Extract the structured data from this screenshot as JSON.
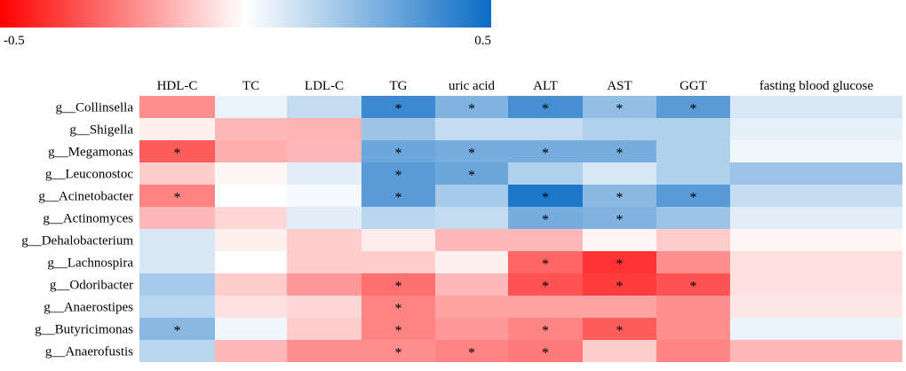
{
  "chart_data": {
    "type": "heatmap",
    "title": "",
    "colorbar": {
      "min": -0.5,
      "max": 0.5,
      "min_label": "-0.5",
      "max_label": "0.5",
      "colors": {
        "negative": "#ff0000",
        "zero": "#ffffff",
        "positive": "#0a6cc4"
      }
    },
    "columns": [
      "HDL-C",
      "TC",
      "LDL-C",
      "TG",
      "uric acid",
      "ALT",
      "AST",
      "GGT",
      "fasting blood glucose"
    ],
    "rows": [
      "g__Collinsella",
      "g__Shigella",
      "g__Megamonas",
      "g__Leuconostoc",
      "g__Acinetobacter",
      "g__Actinomyces",
      "g__Dehalobacterium",
      "g__Lachnospira",
      "g__Odoribacter",
      "g__Anaerostipes",
      "g__Butyricimonas",
      "g__Anaerofustis"
    ],
    "values": [
      [
        -0.22,
        0.04,
        0.12,
        0.4,
        0.26,
        0.38,
        0.22,
        0.34,
        0.08
      ],
      [
        -0.03,
        -0.14,
        -0.15,
        0.2,
        0.12,
        0.12,
        0.16,
        0.16,
        0.05
      ],
      [
        -0.32,
        -0.16,
        -0.14,
        0.3,
        0.28,
        0.28,
        0.28,
        0.16,
        0.03
      ],
      [
        -0.1,
        -0.02,
        0.06,
        0.34,
        0.3,
        0.16,
        0.08,
        0.16,
        0.2
      ],
      [
        -0.24,
        0.0,
        0.02,
        0.34,
        0.18,
        0.46,
        0.24,
        0.34,
        0.12
      ],
      [
        -0.14,
        -0.08,
        0.06,
        0.14,
        0.12,
        0.28,
        0.26,
        0.2,
        0.06
      ],
      [
        0.08,
        -0.03,
        -0.1,
        -0.04,
        -0.14,
        -0.14,
        -0.02,
        -0.1,
        -0.02
      ],
      [
        0.08,
        0.0,
        -0.1,
        -0.1,
        -0.03,
        -0.3,
        -0.4,
        -0.22,
        -0.06
      ],
      [
        0.18,
        -0.1,
        -0.2,
        -0.28,
        -0.14,
        -0.34,
        -0.38,
        -0.34,
        -0.06
      ],
      [
        0.14,
        -0.06,
        -0.08,
        -0.24,
        -0.18,
        -0.18,
        -0.18,
        -0.22,
        -0.05
      ],
      [
        0.24,
        0.03,
        -0.1,
        -0.24,
        -0.2,
        -0.24,
        -0.32,
        -0.22,
        0.04
      ],
      [
        0.14,
        -0.14,
        -0.22,
        -0.22,
        -0.24,
        -0.26,
        -0.1,
        -0.24,
        -0.14
      ]
    ],
    "significance": [
      [
        0,
        0,
        0,
        1,
        1,
        1,
        1,
        1,
        0
      ],
      [
        0,
        0,
        0,
        0,
        0,
        0,
        0,
        0,
        0
      ],
      [
        1,
        0,
        0,
        1,
        1,
        1,
        1,
        0,
        0
      ],
      [
        0,
        0,
        0,
        1,
        1,
        0,
        0,
        0,
        0
      ],
      [
        1,
        0,
        0,
        1,
        0,
        1,
        1,
        1,
        0
      ],
      [
        0,
        0,
        0,
        0,
        0,
        1,
        1,
        0,
        0
      ],
      [
        0,
        0,
        0,
        0,
        0,
        0,
        0,
        0,
        0
      ],
      [
        0,
        0,
        0,
        0,
        0,
        1,
        1,
        0,
        0
      ],
      [
        0,
        0,
        0,
        1,
        0,
        1,
        1,
        1,
        0
      ],
      [
        0,
        0,
        0,
        1,
        0,
        0,
        0,
        0,
        0
      ],
      [
        1,
        0,
        0,
        1,
        0,
        1,
        1,
        0,
        0
      ],
      [
        0,
        0,
        0,
        1,
        1,
        1,
        0,
        0,
        0
      ]
    ],
    "significance_marker": "*"
  }
}
